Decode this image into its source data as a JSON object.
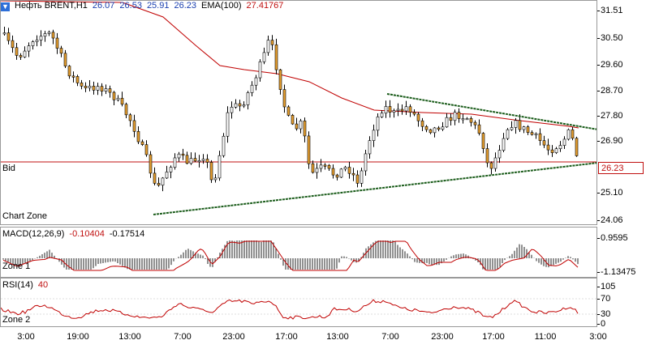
{
  "main": {
    "symbol": "Нефть BRENT,H1",
    "ohlc": [
      "26.07",
      "26.53",
      "25.91",
      "26.23"
    ],
    "ema_label": "EMA(100)",
    "ema_value": "27.41767",
    "bid_label": "Bid",
    "zone_label": "Chart Zone",
    "price_ticks": [
      "31.51",
      "30.50",
      "29.60",
      "28.70",
      "27.80",
      "26.90",
      "25.10",
      "24.06"
    ],
    "current_price": "26.23"
  },
  "macd": {
    "label": "MACD(12,26,9)",
    "main_value": "-0.10404",
    "signal_value": "-0.17514",
    "zone_label": "Zone 1",
    "ticks": [
      "0.9595",
      "-1.13475"
    ]
  },
  "rsi": {
    "label": "RSI(14)",
    "value": "40",
    "zone_label": "Zone 2",
    "ticks": [
      "105",
      "70",
      "30",
      "0"
    ]
  },
  "time_axis": {
    "labels": [
      "3:00",
      "19:00",
      "13:00",
      "7:00",
      "23:00",
      "17:00",
      "13:00",
      "7:00",
      "23:00",
      "17:00",
      "11:00",
      "3:00"
    ]
  },
  "colors": {
    "bull_candle": "#ffffff",
    "bear_candle": "#e8a030",
    "ema_line": "#c00000",
    "trend_line": "#1a5c1a",
    "bid_line": "#c01010"
  }
}
